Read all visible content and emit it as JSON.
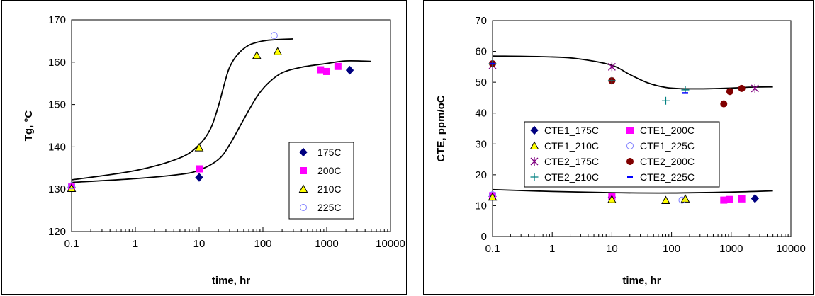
{
  "chart_data": [
    {
      "type": "scatter",
      "title": "",
      "xlabel": "time, hr",
      "ylabel": "Tg, °C",
      "xscale": "log",
      "xlim": [
        0.1,
        10000
      ],
      "ylim": [
        120,
        170
      ],
      "xticks": [
        {
          "value": 0.1,
          "label": "0.1"
        },
        {
          "value": 1,
          "label": "1"
        },
        {
          "value": 10,
          "label": "10"
        },
        {
          "value": 100,
          "label": "100"
        },
        {
          "value": 1000,
          "label": "1000"
        },
        {
          "value": 10000,
          "label": "10000"
        }
      ],
      "yticks": [
        {
          "value": 120,
          "label": "120"
        },
        {
          "value": 130,
          "label": "130"
        },
        {
          "value": 140,
          "label": "140"
        },
        {
          "value": 150,
          "label": "150"
        },
        {
          "value": 160,
          "label": "160"
        },
        {
          "value": 170,
          "label": "170"
        }
      ],
      "grid": false,
      "legend_position": "inside-right",
      "series": [
        {
          "name": "175C",
          "marker": "diamond",
          "color": "#000080",
          "fill": "#000080",
          "points": [
            [
              0.1,
              130.5
            ],
            [
              10,
              132.8
            ],
            [
              2300,
              158.1
            ]
          ]
        },
        {
          "name": "200C",
          "marker": "square",
          "color": "#ff00ff",
          "fill": "#ff00ff",
          "points": [
            [
              0.1,
              130.5
            ],
            [
              10,
              134.8
            ],
            [
              800,
              158.2
            ],
            [
              1000,
              157.8
            ],
            [
              1500,
              159.0
            ]
          ]
        },
        {
          "name": "210C",
          "marker": "triangle",
          "color": "#000000",
          "fill": "#ffff00",
          "points": [
            [
              0.1,
              130.2
            ],
            [
              10,
              139.8
            ],
            [
              80,
              161.6
            ],
            [
              170,
              162.5
            ]
          ]
        },
        {
          "name": "225C",
          "marker": "circle",
          "color": "#8080ff",
          "fill": "none",
          "points": [
            [
              0.1,
              130.8
            ],
            [
              150,
              166.3
            ]
          ]
        }
      ],
      "trend_lines": [
        {
          "points": [
            [
              0.1,
              132.2
            ],
            [
              1,
              134.4
            ],
            [
              5,
              137.4
            ],
            [
              10,
              140.5
            ],
            [
              15,
              144.2
            ],
            [
              20,
              149.6
            ],
            [
              25,
              155.0
            ],
            [
              30,
              158.8
            ],
            [
              40,
              161.8
            ],
            [
              60,
              164.0
            ],
            [
              100,
              165.0
            ],
            [
              150,
              165.3
            ],
            [
              300,
              165.5
            ]
          ]
        },
        {
          "points": [
            [
              0.1,
              131.6
            ],
            [
              1,
              132.5
            ],
            [
              5,
              133.5
            ],
            [
              10,
              134.5
            ],
            [
              20,
              137.0
            ],
            [
              30,
              140.5
            ],
            [
              50,
              146.5
            ],
            [
              80,
              151.8
            ],
            [
              120,
              155.0
            ],
            [
              200,
              157.5
            ],
            [
              400,
              158.8
            ],
            [
              1000,
              159.7
            ],
            [
              2000,
              160.3
            ],
            [
              5000,
              160.2
            ]
          ]
        }
      ]
    },
    {
      "type": "scatter",
      "title": "",
      "xlabel": "time, hr",
      "ylabel": "CTE, ppm/oC",
      "xscale": "log",
      "xlim": [
        0.1,
        10000
      ],
      "ylim": [
        0,
        70
      ],
      "xticks": [
        {
          "value": 0.1,
          "label": "0.1"
        },
        {
          "value": 1,
          "label": "1"
        },
        {
          "value": 10,
          "label": "10"
        },
        {
          "value": 100,
          "label": "100"
        },
        {
          "value": 1000,
          "label": "1000"
        },
        {
          "value": 10000,
          "label": "10000"
        }
      ],
      "yticks": [
        {
          "value": 0,
          "label": "0"
        },
        {
          "value": 10,
          "label": "10"
        },
        {
          "value": 20,
          "label": "20"
        },
        {
          "value": 30,
          "label": "30"
        },
        {
          "value": 40,
          "label": "40"
        },
        {
          "value": 50,
          "label": "50"
        },
        {
          "value": 60,
          "label": "60"
        },
        {
          "value": 70,
          "label": "70"
        }
      ],
      "grid": false,
      "legend_position": "center-left",
      "series": [
        {
          "name": "CTE1_175C",
          "marker": "diamond",
          "color": "#000080",
          "fill": "#000080",
          "points": [
            [
              0.1,
              13.0
            ],
            [
              10,
              12.8
            ],
            [
              2500,
              12.3
            ]
          ]
        },
        {
          "name": "CTE1_200C",
          "marker": "square",
          "color": "#ff00ff",
          "fill": "#ff00ff",
          "points": [
            [
              0.1,
              13.2
            ],
            [
              10,
              13.0
            ],
            [
              750,
              11.8
            ],
            [
              950,
              12.0
            ],
            [
              1500,
              12.2
            ]
          ]
        },
        {
          "name": "CTE1_210C",
          "marker": "triangle",
          "color": "#000000",
          "fill": "#ffff00",
          "points": [
            [
              0.1,
              12.8
            ],
            [
              10,
              12.0
            ],
            [
              80,
              11.7
            ],
            [
              170,
              12.2
            ]
          ]
        },
        {
          "name": "CTE1_225C",
          "marker": "circle",
          "color": "#8080ff",
          "fill": "none",
          "points": [
            [
              0.1,
              13.5
            ],
            [
              150,
              11.8
            ]
          ]
        },
        {
          "name": "CTE2_175C",
          "marker": "star",
          "color": "#800080",
          "fill": "none",
          "points": [
            [
              0.1,
              55.5
            ],
            [
              10,
              55.0
            ],
            [
              2500,
              48.0
            ]
          ]
        },
        {
          "name": "CTE2_200C",
          "marker": "circle",
          "color": "#800000",
          "fill": "#800000",
          "points": [
            [
              0.1,
              56.0
            ],
            [
              10,
              50.5
            ],
            [
              750,
              43.0
            ],
            [
              950,
              47.0
            ],
            [
              1500,
              48.0
            ]
          ]
        },
        {
          "name": "CTE2_210C",
          "marker": "plus",
          "color": "#008080",
          "fill": "none",
          "points": [
            [
              0.1,
              56.0
            ],
            [
              10,
              50.5
            ],
            [
              80,
              44.0
            ],
            [
              170,
              47.5
            ]
          ]
        },
        {
          "name": "CTE2_225C",
          "marker": "dash",
          "color": "#0000ff",
          "fill": "none",
          "points": [
            [
              0.1,
              56.0
            ],
            [
              170,
              46.5
            ]
          ]
        }
      ],
      "trend_lines": [
        {
          "points": [
            [
              0.1,
              58.5
            ],
            [
              1,
              58.2
            ],
            [
              3,
              57.5
            ],
            [
              10,
              55.5
            ],
            [
              20,
              52.5
            ],
            [
              40,
              49.8
            ],
            [
              80,
              48.3
            ],
            [
              150,
              47.9
            ],
            [
              400,
              47.9
            ],
            [
              1000,
              48.1
            ],
            [
              2000,
              48.4
            ],
            [
              5000,
              48.5
            ]
          ]
        },
        {
          "points": [
            [
              0.1,
              15.2
            ],
            [
              1,
              14.6
            ],
            [
              10,
              14.2
            ],
            [
              100,
              14.1
            ],
            [
              1000,
              14.4
            ],
            [
              5000,
              14.8
            ]
          ]
        }
      ]
    }
  ]
}
